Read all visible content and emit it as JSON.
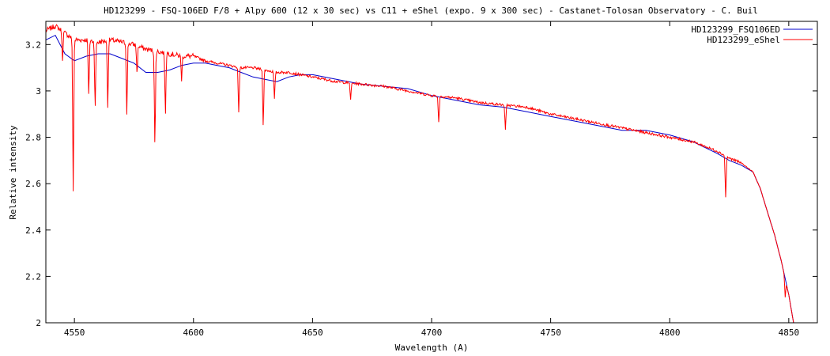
{
  "chart_data": {
    "type": "line",
    "title": "HD123299 - FSQ-106ED F/8 + Alpy 600 (12 x 30 sec)  vs C11 + eShel (expo. 9 x 300 sec) - Castanet-Tolosan Observatory - C. Buil",
    "xlabel": "Wavelength (A)",
    "ylabel": "Relative intensity",
    "xlim": [
      4538,
      4862
    ],
    "ylim": [
      2.0,
      3.3
    ],
    "x_ticks": [
      4550,
      4600,
      4650,
      4700,
      4750,
      4800,
      4850
    ],
    "y_ticks": [
      2,
      2.2,
      2.4,
      2.6,
      2.8,
      3,
      3.2
    ],
    "y_tick_labels": [
      "2",
      "2.2",
      "2.4",
      "2.6",
      "2.8",
      "3",
      "3.2"
    ],
    "grid": false,
    "legend_position": "top-right",
    "series": [
      {
        "name": "HD123299_FSQ106ED",
        "color": "#0000cc",
        "x": [
          4538,
          4542,
          4546,
          4550,
          4555,
          4560,
          4565,
          4570,
          4575,
          4580,
          4585,
          4590,
          4595,
          4600,
          4605,
          4610,
          4615,
          4620,
          4625,
          4630,
          4635,
          4640,
          4645,
          4650,
          4660,
          4670,
          4680,
          4690,
          4700,
          4710,
          4720,
          4730,
          4740,
          4750,
          4760,
          4770,
          4780,
          4790,
          4800,
          4810,
          4820,
          4825,
          4830,
          4835,
          4838,
          4841,
          4844,
          4847,
          4850,
          4852
        ],
        "y": [
          3.22,
          3.24,
          3.16,
          3.13,
          3.15,
          3.16,
          3.16,
          3.14,
          3.12,
          3.08,
          3.08,
          3.09,
          3.11,
          3.12,
          3.12,
          3.11,
          3.1,
          3.08,
          3.06,
          3.05,
          3.04,
          3.06,
          3.07,
          3.07,
          3.05,
          3.03,
          3.02,
          3.01,
          2.98,
          2.96,
          2.94,
          2.93,
          2.91,
          2.89,
          2.87,
          2.85,
          2.83,
          2.83,
          2.81,
          2.78,
          2.73,
          2.7,
          2.68,
          2.65,
          2.58,
          2.48,
          2.38,
          2.26,
          2.12,
          2.0
        ]
      },
      {
        "name": "HD123299_eShel",
        "color": "#ff0000",
        "x": [
          4538,
          4542,
          4546,
          4550,
          4555,
          4560,
          4565,
          4570,
          4575,
          4580,
          4585,
          4590,
          4595,
          4600,
          4605,
          4610,
          4615,
          4620,
          4625,
          4630,
          4635,
          4640,
          4645,
          4650,
          4660,
          4670,
          4680,
          4690,
          4700,
          4710,
          4720,
          4730,
          4740,
          4750,
          4760,
          4770,
          4780,
          4790,
          4800,
          4810,
          4820,
          4825,
          4830,
          4835,
          4838,
          4841,
          4844,
          4847,
          4850,
          4852
        ],
        "y": [
          3.26,
          3.28,
          3.25,
          3.22,
          3.22,
          3.21,
          3.22,
          3.21,
          3.2,
          3.18,
          3.17,
          3.16,
          3.15,
          3.15,
          3.13,
          3.12,
          3.11,
          3.1,
          3.1,
          3.09,
          3.08,
          3.08,
          3.07,
          3.06,
          3.04,
          3.03,
          3.02,
          3.0,
          2.98,
          2.97,
          2.95,
          2.94,
          2.93,
          2.9,
          2.88,
          2.86,
          2.84,
          2.82,
          2.8,
          2.78,
          2.74,
          2.71,
          2.69,
          2.65,
          2.58,
          2.48,
          2.38,
          2.26,
          2.12,
          2.0
        ],
        "absorption_lines": [
          {
            "x": 4545,
            "depth": 0.12
          },
          {
            "x": 4549.5,
            "depth": 0.65
          },
          {
            "x": 4556,
            "depth": 0.24
          },
          {
            "x": 4558.7,
            "depth": 0.29
          },
          {
            "x": 4564,
            "depth": 0.28
          },
          {
            "x": 4572,
            "depth": 0.3
          },
          {
            "x": 4576.3,
            "depth": 0.12
          },
          {
            "x": 4583.8,
            "depth": 0.41
          },
          {
            "x": 4588.2,
            "depth": 0.26
          },
          {
            "x": 4595,
            "depth": 0.1
          },
          {
            "x": 4619,
            "depth": 0.19
          },
          {
            "x": 4629.3,
            "depth": 0.24
          },
          {
            "x": 4634,
            "depth": 0.12
          },
          {
            "x": 4666,
            "depth": 0.07
          },
          {
            "x": 4703,
            "depth": 0.11
          },
          {
            "x": 4731,
            "depth": 0.11
          },
          {
            "x": 4823.5,
            "depth": 0.18
          },
          {
            "x": 4848.5,
            "depth": 0.08
          }
        ]
      }
    ]
  }
}
